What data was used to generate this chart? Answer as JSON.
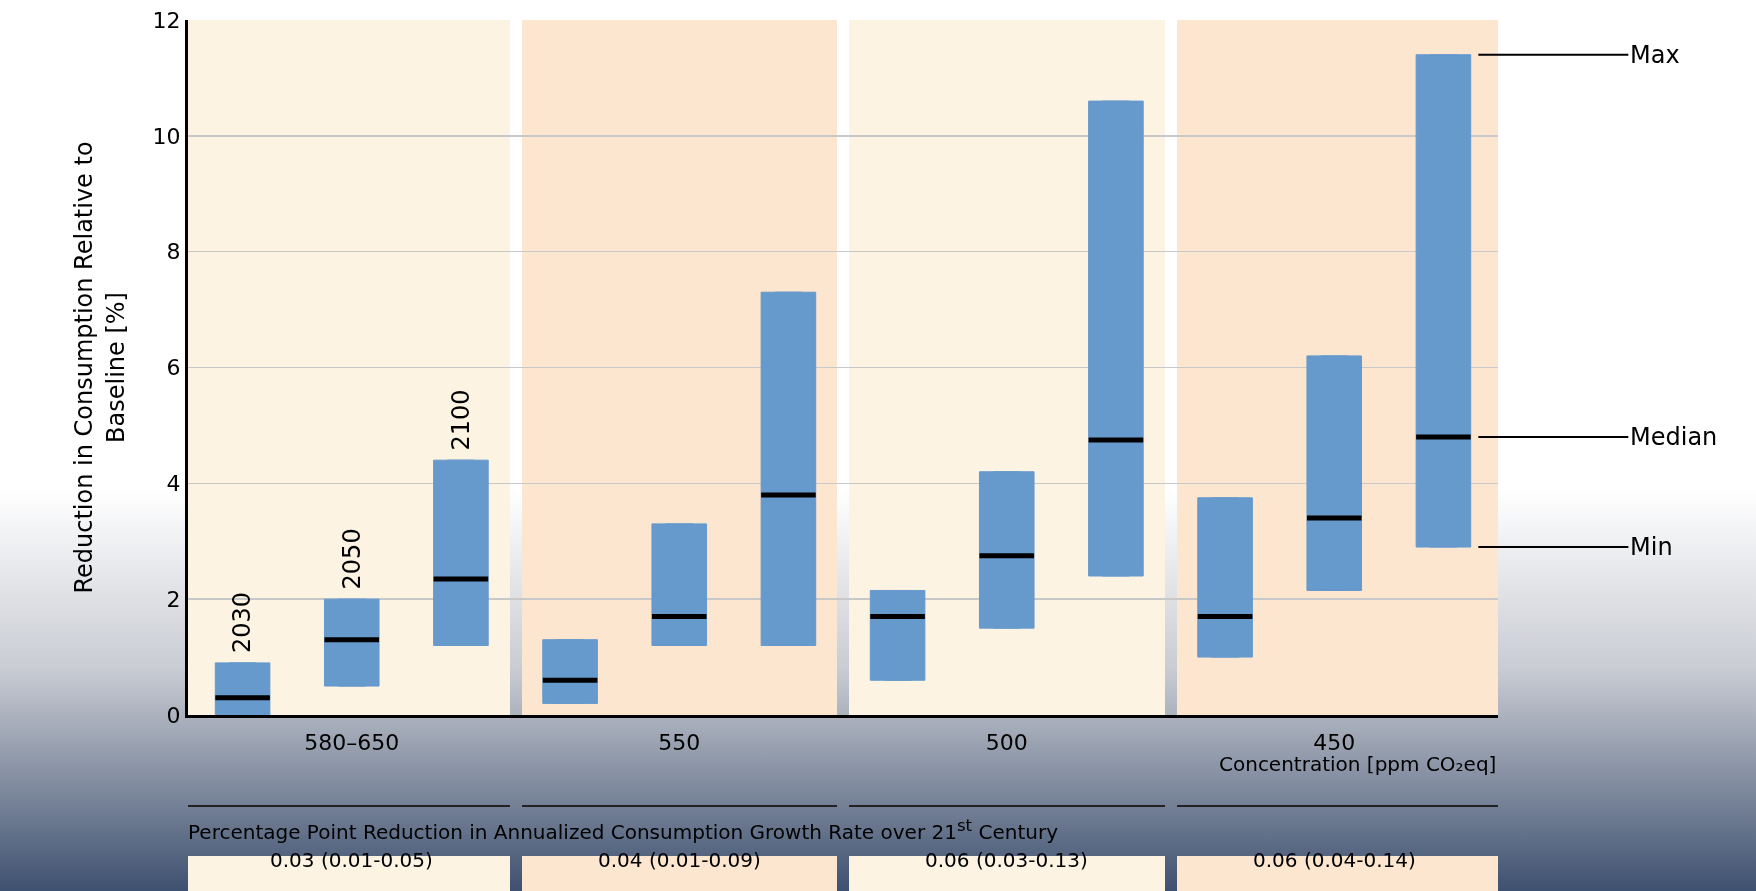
{
  "chart_data": {
    "type": "box",
    "ylabel": "Reduction in Consumption Relative to Baseline [%]",
    "categories": [
      null,
      "580–650",
      null,
      null,
      "550",
      null,
      null,
      "500",
      null,
      null,
      "450",
      null
    ],
    "color": "#6699cc",
    "grid": "y",
    "ylim": [
      0,
      12
    ],
    "yticks": [
      0,
      2,
      4,
      6,
      8,
      10,
      12
    ],
    "boxes": [
      {
        "low": 0,
        "q1": 0,
        "median": 0.3,
        "q3": 0.9,
        "high": 0.9
      },
      {
        "low": 0.5,
        "q1": 0.5,
        "median": 1.3,
        "q3": 2.0,
        "high": 2.0
      },
      {
        "low": 1.2,
        "q1": 1.2,
        "median": 2.35,
        "q3": 4.4,
        "high": 4.4
      },
      {
        "low": 0.2,
        "q1": 0.2,
        "median": 0.6,
        "q3": 1.3,
        "high": 1.3
      },
      {
        "low": 1.2,
        "q1": 1.2,
        "median": 1.7,
        "q3": 3.3,
        "high": 3.3
      },
      {
        "low": 1.2,
        "q1": 1.2,
        "median": 3.8,
        "q3": 7.3,
        "high": 7.3
      },
      {
        "low": 0.6,
        "q1": 0.6,
        "median": 1.7,
        "q3": 2.15,
        "high": 2.15
      },
      {
        "low": 1.5,
        "q1": 1.5,
        "median": 2.75,
        "q3": 4.2,
        "high": 4.2
      },
      {
        "low": 2.4,
        "q1": 2.4,
        "median": 4.75,
        "q3": 10.6,
        "high": 10.6
      },
      {
        "low": 1.0,
        "q1": 1.0,
        "median": 1.7,
        "q3": 3.75,
        "high": 3.75
      },
      {
        "low": 2.15,
        "q1": 2.15,
        "median": 3.4,
        "q3": 6.2,
        "high": 6.2
      },
      {
        "low": 2.9,
        "q1": 2.9,
        "median": 4.8,
        "q3": 11.4,
        "high": 11.4
      }
    ],
    "annotations": [
      "2030",
      "2050",
      "2100",
      "Max",
      "Median",
      "Min",
      "Percentage Point Reduction in Annualized Consumption Growth Rate over 21$^{st}$ Century",
      "Concentration [ppm CO₂eq]",
      "0.03 (0.01-0.05)",
      "0.04 (0.01-0.09)",
      "0.06 (0.03-0.13)",
      "0.06 (0.04-0.14)"
    ]
  }
}
